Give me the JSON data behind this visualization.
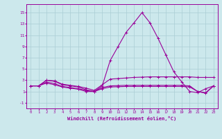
{
  "x": [
    0,
    1,
    2,
    3,
    4,
    5,
    6,
    7,
    8,
    9,
    10,
    11,
    12,
    13,
    14,
    15,
    16,
    17,
    18,
    19,
    20,
    21,
    22,
    23
  ],
  "line_peak": [
    2,
    2,
    3,
    2.8,
    2.2,
    2.0,
    1.8,
    1.3,
    1.0,
    2.0,
    6.5,
    9.0,
    11.5,
    13.2,
    15.0,
    13.2,
    10.5,
    7.5,
    4.5,
    2.7,
    1.0,
    0.8,
    1.5,
    2.0
  ],
  "line_flat1": [
    2,
    2,
    3,
    2.9,
    2.3,
    2.1,
    1.9,
    1.6,
    1.2,
    2.2,
    3.2,
    3.3,
    3.4,
    3.5,
    3.55,
    3.6,
    3.6,
    3.6,
    3.6,
    3.6,
    3.6,
    3.5,
    3.5,
    3.5
  ],
  "line_flat2": [
    2,
    2,
    2.7,
    2.4,
    1.9,
    1.7,
    1.5,
    1.2,
    1.0,
    1.7,
    2.0,
    2.05,
    2.1,
    2.1,
    2.1,
    2.1,
    2.1,
    2.1,
    2.1,
    2.1,
    2.0,
    1.0,
    0.7,
    2.0
  ],
  "line_flat3": [
    2,
    2,
    2.5,
    2.2,
    1.8,
    1.6,
    1.4,
    1.0,
    1.0,
    1.5,
    1.8,
    1.85,
    1.9,
    1.9,
    1.9,
    1.9,
    1.9,
    1.9,
    1.9,
    1.9,
    1.8,
    1.0,
    0.8,
    2.0
  ],
  "color": "#990099",
  "bg_color": "#cce8ec",
  "grid_color": "#aacdd4",
  "ylabel_ticks": [
    -1,
    1,
    3,
    5,
    7,
    9,
    11,
    13,
    15
  ],
  "xlabel_ticks": [
    0,
    1,
    2,
    3,
    4,
    5,
    6,
    7,
    8,
    9,
    10,
    11,
    12,
    13,
    14,
    15,
    16,
    17,
    18,
    19,
    20,
    21,
    22,
    23
  ],
  "xlabel": "Windchill (Refroidissement éolien,°C)",
  "ylim": [
    -2,
    16.5
  ],
  "xlim": [
    -0.5,
    23.5
  ]
}
